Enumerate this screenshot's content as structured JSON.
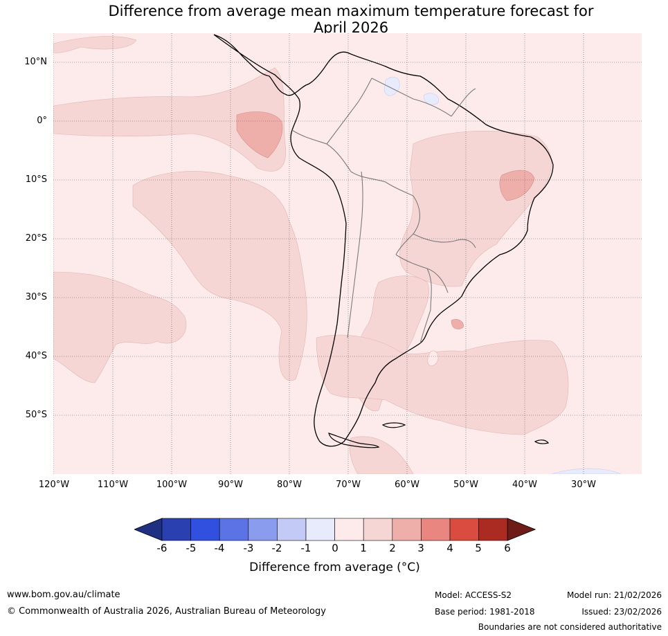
{
  "title_line1": "Difference from average mean maximum temperature forecast for",
  "title_line2": "April 2026",
  "lat_labels": [
    "10°N",
    "0°",
    "10°S",
    "20°S",
    "30°S",
    "40°S",
    "50°S"
  ],
  "lon_labels": [
    "120°W",
    "110°W",
    "100°W",
    "90°W",
    "80°W",
    "70°W",
    "60°W",
    "50°W",
    "40°W",
    "30°W"
  ],
  "colorbar": {
    "ticks": [
      "-6",
      "-5",
      "-4",
      "-3",
      "-2",
      "-1",
      "0",
      "1",
      "2",
      "3",
      "4",
      "5",
      "6"
    ],
    "colors": [
      "#1f2f82",
      "#2a3fb0",
      "#3150e0",
      "#5c73e6",
      "#8a9cee",
      "#c2caf5",
      "#e8ebfc",
      "#fcebea",
      "#f6d6d4",
      "#eeaeaa",
      "#e98680",
      "#da4c40",
      "#ab2b22",
      "#6e1c17"
    ],
    "title": "Difference from average (°C)"
  },
  "footer": {
    "website": "www.bom.gov.au/climate",
    "copyright": "© Commonwealth of Australia 2026, Australian Bureau of Meteorology",
    "model": "Model: ACCESS-S2",
    "base_period": "Base period: 1981-2018",
    "model_run": "Model run: 21/02/2026",
    "issued": "Issued: 23/02/2026",
    "disclaimer": "Boundaries are not considered authoritative"
  }
}
